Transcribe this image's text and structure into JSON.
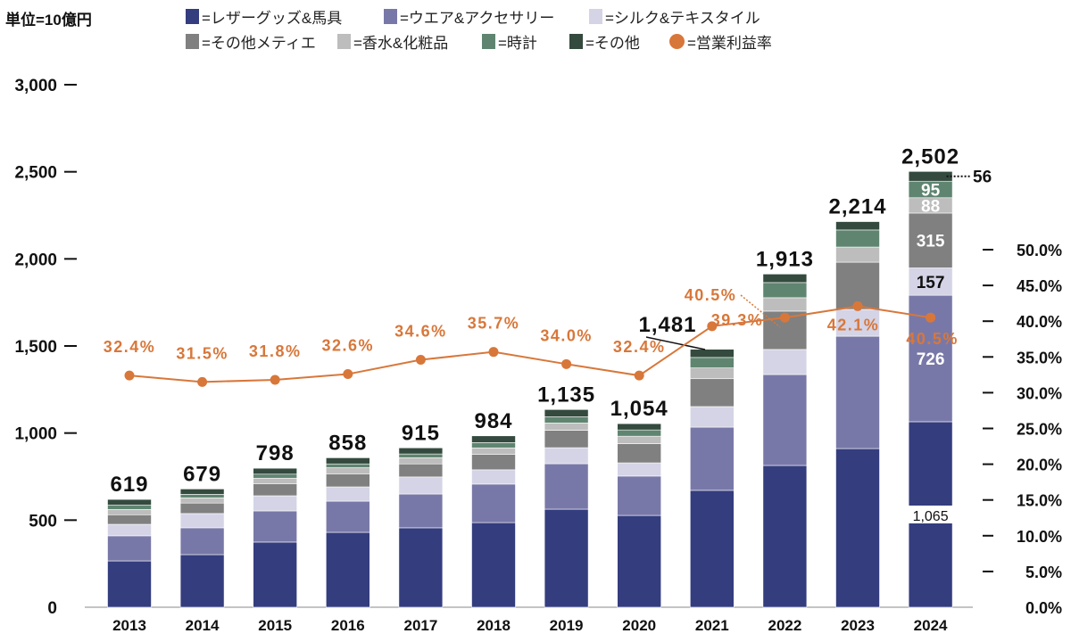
{
  "unit_label": "単位=10億円",
  "colors": {
    "leather": "#343d7e",
    "wear": "#7878a8",
    "silk": "#d4d4e6",
    "metier": "#808080",
    "perfume": "#bdbdbd",
    "watches": "#5f8570",
    "other": "#344a3e",
    "margin": "#d8773a"
  },
  "legend": [
    {
      "key": "leather",
      "label": "=レザーグッズ&馬具"
    },
    {
      "key": "wear",
      "label": "=ウエア&アクセサリー"
    },
    {
      "key": "silk",
      "label": "=シルク&テキスタイル"
    },
    {
      "key": "metier",
      "label": "=その他メティエ"
    },
    {
      "key": "perfume",
      "label": "=香水&化粧品"
    },
    {
      "key": "watches",
      "label": "=時計"
    },
    {
      "key": "other",
      "label": "=その他"
    },
    {
      "key": "margin",
      "label": "=営業利益率"
    }
  ],
  "chart_data": {
    "type": "bar",
    "stacked": true,
    "categories": [
      "2013",
      "2014",
      "2015",
      "2016",
      "2017",
      "2018",
      "2019",
      "2020",
      "2021",
      "2022",
      "2023",
      "2024"
    ],
    "series": [
      {
        "key": "leather",
        "name": "レザーグッズ&馬具",
        "values": [
          266,
          302,
          374,
          430,
          456,
          486,
          563,
          527,
          671,
          814,
          911,
          1065
        ]
      },
      {
        "key": "wear",
        "name": "ウエア&アクセサリー",
        "values": [
          144,
          154,
          179,
          179,
          194,
          221,
          261,
          226,
          363,
          522,
          645,
          726
        ]
      },
      {
        "key": "silk",
        "name": "シルク&テキスタイル",
        "values": [
          66,
          82,
          87,
          82,
          98,
          82,
          92,
          76,
          118,
          144,
          154,
          157
        ]
      },
      {
        "key": "metier",
        "name": "その他メティエ",
        "values": [
          55,
          60,
          68,
          75,
          75,
          88,
          100,
          110,
          160,
          220,
          271,
          315
        ]
      },
      {
        "key": "perfume",
        "name": "香水&化粧品",
        "values": [
          30,
          30,
          33,
          35,
          35,
          38,
          42,
          43,
          62,
          77,
          87,
          88
        ]
      },
      {
        "key": "watches",
        "name": "時計",
        "values": [
          25,
          20,
          23,
          22,
          22,
          30,
          35,
          36,
          60,
          87,
          98,
          95
        ]
      },
      {
        "key": "other",
        "name": "その他",
        "values": [
          33,
          31,
          34,
          35,
          35,
          39,
          42,
          36,
          47,
          49,
          48,
          56
        ]
      }
    ],
    "totals": [
      "619",
      "679",
      "798",
      "858",
      "915",
      "984",
      "1,135",
      "1,054",
      "1,481",
      "1,913",
      "2,214",
      "2,502"
    ],
    "line": {
      "name": "営業利益率",
      "values": [
        32.4,
        31.5,
        31.8,
        32.6,
        34.6,
        35.7,
        34.0,
        32.4,
        39.3,
        40.5,
        42.1,
        40.5
      ],
      "labels": [
        "32.4%",
        "31.5%",
        "31.8%",
        "32.6%",
        "34.6%",
        "35.7%",
        "34.0%",
        "32.4%",
        "39.3%",
        "40.5%",
        "42.1%",
        "40.5%"
      ]
    },
    "segment_labels_2024": {
      "leather": "1,065",
      "wear": "726",
      "silk": "157",
      "metier": "315",
      "perfume": "88",
      "watches": "95",
      "other": "56"
    },
    "y_left": {
      "range": [
        0,
        3000
      ],
      "ticks": [
        "0",
        "500",
        "1,000",
        "1,500",
        "2,000",
        "2,500",
        "3,000"
      ]
    },
    "y_right": {
      "range": [
        0,
        50
      ],
      "ticks": [
        "0.0%",
        "5.0%",
        "10.0%",
        "15.0%",
        "20.0%",
        "25.0%",
        "30.0%",
        "35.0%",
        "40.0%",
        "45.0%",
        "50.0%"
      ]
    },
    "grid": false,
    "legend_position": "top"
  }
}
